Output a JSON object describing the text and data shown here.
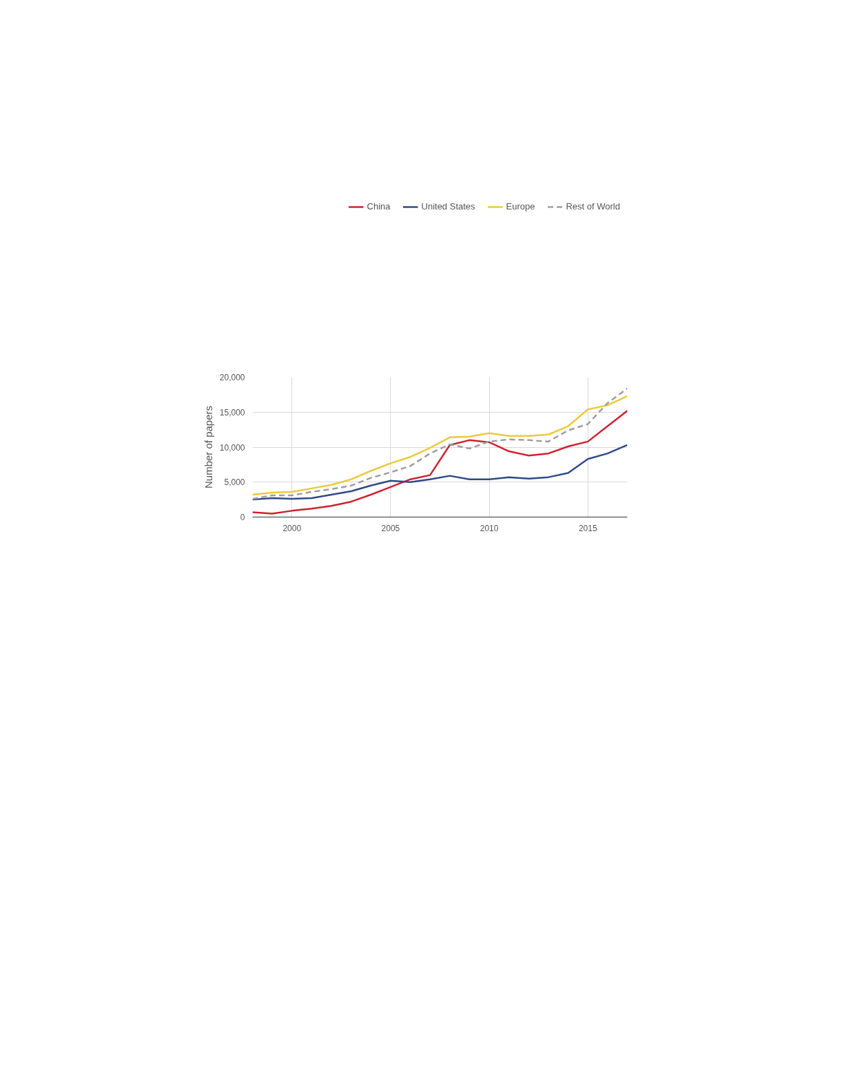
{
  "chart_data": {
    "type": "line",
    "ylabel": "Number of papers",
    "x": [
      1998,
      1999,
      2000,
      2001,
      2002,
      2003,
      2004,
      2005,
      2006,
      2007,
      2008,
      2009,
      2010,
      2011,
      2012,
      2013,
      2014,
      2015,
      2016,
      2017
    ],
    "series": [
      {
        "name": "China",
        "color": "#d0202e",
        "values": [
          700,
          500,
          900,
          1200,
          1600,
          2200,
          3200,
          4300,
          5400,
          6000,
          10300,
          11000,
          10700,
          9400,
          8800,
          9100,
          10100,
          10800,
          13000,
          15200
        ]
      },
      {
        "name": "United States",
        "color": "#2e4a86",
        "values": [
          2500,
          2700,
          2600,
          2700,
          3200,
          3700,
          4500,
          5200,
          5000,
          5400,
          5900,
          5400,
          5400,
          5700,
          5500,
          5700,
          6300,
          8300,
          9100,
          10300
        ]
      },
      {
        "name": "Europe",
        "color": "#eec93a",
        "values": [
          3200,
          3500,
          3600,
          4100,
          4600,
          5400,
          6600,
          7700,
          8600,
          9900,
          11400,
          11500,
          12000,
          11600,
          11600,
          11800,
          13000,
          15400,
          16000,
          17300
        ]
      },
      {
        "name": "Rest of World",
        "color": "#9e9e9e",
        "line_style": "dashed",
        "values": [
          2600,
          3100,
          3100,
          3600,
          4000,
          4500,
          5600,
          6400,
          7300,
          9100,
          10400,
          9800,
          10800,
          11100,
          11000,
          10800,
          12400,
          13300,
          16300,
          18400
        ]
      }
    ],
    "xlim": [
      1998,
      2017
    ],
    "ylim": [
      0,
      20000
    ],
    "xticks": [
      2000,
      2005,
      2010,
      2015
    ],
    "yticks": [
      0,
      {
        "value": 5000,
        "label": "5,000"
      },
      {
        "value": 10000,
        "label": "10,000"
      },
      {
        "value": 15000,
        "label": "15,000"
      },
      {
        "value": 20000,
        "label": "20,000"
      }
    ],
    "grid": true,
    "legend": "top"
  }
}
